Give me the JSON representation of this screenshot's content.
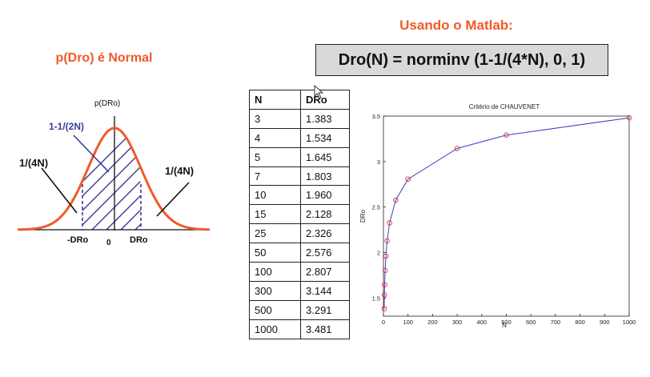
{
  "heading_matlab": "Usando o Matlab:",
  "heading_normal": "p(Dro) é Normal",
  "formula": "Dro(N) = norminv (1-1/(4*N), 0, 1)",
  "bell": {
    "y_axis_label": "p(DRo)",
    "center_label": "1-1/(2N)",
    "left_tail_label": "1/(4N)",
    "right_tail_label": "1/(4N)",
    "neg_label": "-DRo",
    "zero_label": "0",
    "pos_label": "DRo",
    "curve_color": "#f05a28",
    "hatch_color": "#3b3b9a"
  },
  "table": {
    "headers": [
      "N",
      "DRo"
    ],
    "rows": [
      [
        "3",
        "1.383"
      ],
      [
        "4",
        "1.534"
      ],
      [
        "5",
        "1.645"
      ],
      [
        "7",
        "1.803"
      ],
      [
        "10",
        "1.960"
      ],
      [
        "15",
        "2.128"
      ],
      [
        "25",
        "2.326"
      ],
      [
        "50",
        "2.576"
      ],
      [
        "100",
        "2.807"
      ],
      [
        "300",
        "3.144"
      ],
      [
        "500",
        "3.291"
      ],
      [
        "1000",
        "3.481"
      ]
    ]
  },
  "chart_data": {
    "type": "line",
    "title": "Critério de CHAUVENET",
    "xlabel": "N",
    "ylabel": "DRo",
    "x": [
      3,
      4,
      5,
      7,
      10,
      15,
      25,
      50,
      100,
      300,
      500,
      1000
    ],
    "y": [
      1.383,
      1.534,
      1.645,
      1.803,
      1.96,
      2.128,
      2.326,
      2.576,
      2.807,
      3.144,
      3.291,
      3.481
    ],
    "xlim": [
      0,
      1000
    ],
    "ylim": [
      1.3,
      3.5
    ],
    "xticks": [
      0,
      100,
      200,
      300,
      400,
      500,
      600,
      700,
      800,
      900,
      1000
    ],
    "yticks": [
      1.5,
      2,
      2.5,
      3,
      3.5
    ],
    "line_color": "#3b3bc8",
    "marker_color": "#e03030",
    "grid": false
  }
}
